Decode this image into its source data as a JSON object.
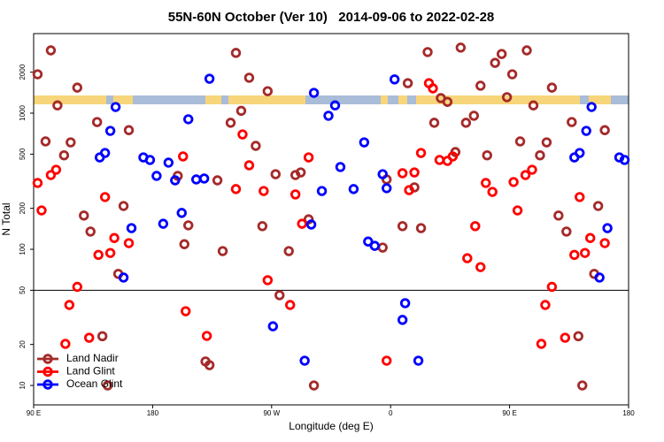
{
  "chart_data": {
    "type": "scatter",
    "title": "55N-60N October (Ver 10)   2014-09-06 to 2022-02-28",
    "x_label": "Longitude (deg E)",
    "y_label": "N Total",
    "xlim": [
      90,
      540
    ],
    "ylim": [
      7.2,
      3840
    ],
    "log_y": true,
    "hline": 50,
    "legend": "bottom-left",
    "xticks": [
      {
        "value": 90,
        "label": "90 E"
      },
      {
        "value": 180,
        "label": "180"
      },
      {
        "value": 270,
        "label": "90 W"
      },
      {
        "value": 360,
        "label": "0"
      },
      {
        "value": 450,
        "label": "90 E"
      },
      {
        "value": 540,
        "label": "180"
      }
    ],
    "yticks": [
      10,
      20,
      50,
      100,
      200,
      500,
      1000,
      2000
    ],
    "series": [
      {
        "name": "Land Nadir",
        "color": "#a52a2a",
        "x": [
          93,
          103,
          108,
          99,
          113,
          118,
          123,
          128,
          133,
          138,
          142,
          146,
          154,
          158,
          162,
          199,
          204,
          207,
          220,
          223,
          229,
          233,
          239,
          243,
          247,
          253,
          258,
          263,
          267,
          273,
          276,
          283,
          288,
          292,
          298,
          302,
          354,
          357,
          369,
          373,
          378,
          383,
          388,
          393,
          398,
          403,
          409,
          413,
          417,
          423,
          428,
          433,
          439,
          444,
          448,
          452,
          458,
          463,
          468,
          473,
          478,
          482,
          487,
          493,
          497,
          502,
          505,
          514,
          517,
          522
        ],
        "values": [
          1930,
          2890,
          1140,
          620,
          490,
          610,
          1540,
          177,
          135,
          860,
          23,
          10,
          66,
          208,
          750,
          346,
          109,
          150,
          15,
          14.1,
          321,
          97,
          850,
          2770,
          1040,
          1820,
          575,
          148,
          1450,
          356,
          46,
          97,
          351,
          367,
          166,
          10,
          103,
          326,
          148,
          1660,
          285,
          143,
          2810,
          850,
          1290,
          1210,
          518,
          3030,
          850,
          957,
          1590,
          490,
          2340,
          2720,
          1310,
          1930,
          620,
          2890,
          1140,
          490,
          610,
          1540,
          177,
          135,
          860,
          23,
          10,
          66,
          208,
          750
        ]
      },
      {
        "name": "Land Glint",
        "color": "#ff0000",
        "x": [
          93,
          96,
          103,
          107,
          117,
          123,
          114,
          132,
          139,
          144,
          148,
          151,
          162,
          203,
          205,
          221,
          243,
          248,
          253,
          264,
          267,
          284,
          288,
          293,
          298,
          357,
          369,
          374,
          378,
          383,
          389,
          392,
          397,
          403,
          407,
          418,
          424,
          428,
          432,
          437,
          453,
          456,
          462,
          467,
          474,
          477,
          482,
          492,
          499,
          503,
          507,
          511,
          522
        ],
        "values": [
          307,
          193,
          351,
          384,
          39,
          53,
          20.2,
          22.4,
          91,
          242,
          94,
          121,
          111,
          481,
          35.1,
          23.1,
          277,
          698,
          414,
          268,
          59.3,
          39,
          253,
          154,
          473,
          15.2,
          362,
          272,
          367,
          510,
          1660,
          1520,
          453,
          446,
          481,
          86,
          148,
          74,
          307,
          264,
          312,
          193,
          351,
          384,
          20.2,
          39,
          53,
          22.4,
          91,
          242,
          94,
          121,
          111
        ]
      },
      {
        "name": "Ocean Glint",
        "color": "#0000ff",
        "x": [
          140,
          144,
          148,
          152,
          158,
          164,
          173,
          178,
          183,
          188,
          192,
          197,
          202,
          207,
          213,
          219,
          223,
          271,
          295,
          300,
          302,
          308,
          313,
          318,
          322,
          332,
          340,
          343,
          348,
          354,
          357,
          363,
          369,
          371,
          381,
          499,
          503,
          508,
          512,
          518,
          524,
          533,
          537
        ],
        "values": [
          473,
          510,
          741,
          1110,
          62,
          143,
          473,
          453,
          346,
          154,
          433,
          321,
          185,
          902,
          326,
          331,
          1790,
          27.2,
          15.2,
          152,
          1410,
          268,
          957,
          1140,
          402,
          277,
          610,
          114,
          106,
          356,
          281,
          1770,
          30.3,
          40.2,
          15.2,
          473,
          510,
          741,
          1110,
          62,
          143,
          473,
          453
        ]
      }
    ]
  }
}
